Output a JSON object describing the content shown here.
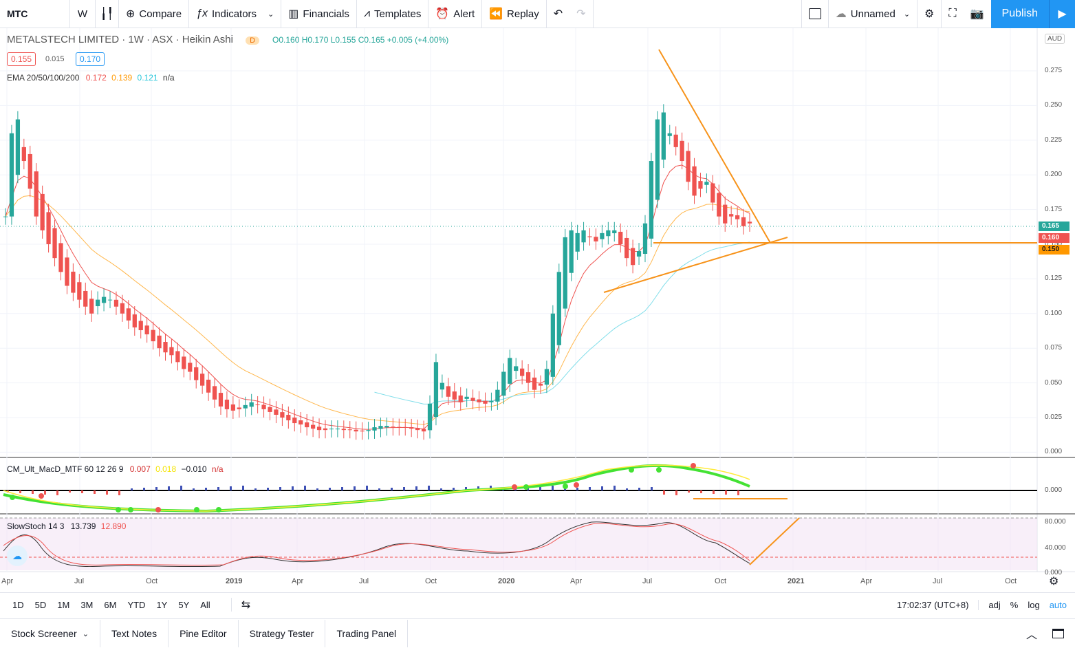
{
  "toolbar": {
    "symbol": "MTC",
    "interval": "W",
    "compare": "Compare",
    "indicators": "Indicators",
    "financials": "Financials",
    "templates": "Templates",
    "alert": "Alert",
    "replay": "Replay",
    "layout_name": "Unnamed",
    "publish": "Publish"
  },
  "legend": {
    "title": "METALSTECH LIMITED · 1W · ASX · Heikin Ashi",
    "badge": "D",
    "ohlc": "O0.160  H0.170  L0.155  C0.165  +0.005 (+4.00%)",
    "bid": "0.155",
    "spread": "0.015",
    "ask": "0.170",
    "ema_name": "EMA 20/50/100/200",
    "ema_v1": "0.172",
    "ema_v2": "0.139",
    "ema_v3": "0.121",
    "ema_v4": "n/a",
    "macd_name": "CM_Ult_MacD_MTF 60 12 26 9",
    "macd_v1": "0.007",
    "macd_v2": "0.018",
    "macd_v3": "−0.010",
    "macd_v4": "n/a",
    "stoch_name": "SlowStoch 14 3",
    "stoch_v1": "13.739",
    "stoch_v2": "12.890"
  },
  "axis": {
    "currency": "AUD",
    "price_ticks": [
      "0.275",
      "0.250",
      "0.225",
      "0.200",
      "0.175",
      "0.150",
      "0.125",
      "0.100",
      "0.075",
      "0.050",
      "0.025",
      "0.000"
    ],
    "macd_tick": "0.000",
    "stoch_ticks": [
      "80.000",
      "40.000",
      "0.000"
    ],
    "tags": [
      "0.165",
      "0.160",
      "0.150"
    ],
    "time_ticks": [
      "Apr",
      "Jul",
      "Oct",
      "2019",
      "Apr",
      "Jul",
      "Oct",
      "2020",
      "Apr",
      "Jul",
      "Oct",
      "2021",
      "Apr",
      "Jul",
      "Oct"
    ]
  },
  "ranges": [
    "1D",
    "5D",
    "1M",
    "3M",
    "6M",
    "YTD",
    "1Y",
    "5Y",
    "All"
  ],
  "status": {
    "time": "17:02:37 (UTC+8)",
    "adj": "adj",
    "pct": "%",
    "log": "log",
    "auto": "auto"
  },
  "tabs": [
    "Stock Screener",
    "Text Notes",
    "Pine Editor",
    "Strategy Tester",
    "Trading Panel"
  ],
  "colors": {
    "up": "#26a69a",
    "down": "#ef5350",
    "accent": "#2196f3",
    "drawing": "#f7931a"
  }
}
